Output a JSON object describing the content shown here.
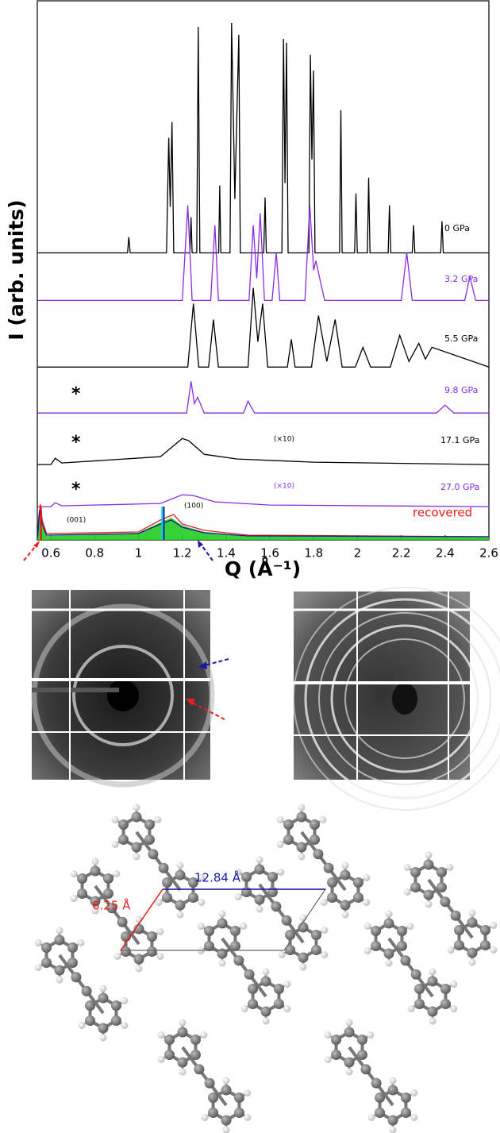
{
  "chart_data": {
    "type": "line",
    "x_label": "Q (Å⁻¹)",
    "y_label": "I (arb. units)",
    "xlim": [
      0.538,
      2.6
    ],
    "ylim": [
      0,
      680
    ],
    "xticks": [
      0.6,
      0.8,
      1,
      1.2,
      1.4,
      1.6,
      1.8,
      2,
      2.2,
      2.4,
      2.6
    ],
    "series": [
      {
        "name": "0 GPa",
        "color": "#000000",
        "x": [
          0.54,
          0.95,
          0.956,
          0.962,
          1.128,
          1.138,
          1.145,
          1.153,
          1.161,
          1.235,
          1.24,
          1.245,
          1.266,
          1.273,
          1.28,
          1.366,
          1.371,
          1.376,
          1.418,
          1.425,
          1.44,
          1.458,
          1.465,
          1.572,
          1.578,
          1.584,
          1.655,
          1.662,
          1.669,
          1.676,
          1.683,
          1.778,
          1.785,
          1.792,
          1.799,
          1.806,
          1.918,
          1.924,
          1.93,
          1.987,
          1.993,
          1.999,
          2.045,
          2.051,
          2.057,
          2.14,
          2.146,
          2.152,
          2.25,
          2.256,
          2.262,
          2.38,
          2.386,
          2.392,
          2.6
        ],
        "values": [
          362,
          362,
          382,
          362,
          362,
          507,
          420,
          527,
          362,
          362,
          407,
          362,
          362,
          647,
          362,
          362,
          447,
          362,
          362,
          652,
          430,
          637,
          362,
          362,
          432,
          362,
          362,
          632,
          450,
          627,
          362,
          362,
          612,
          480,
          592,
          362,
          362,
          542,
          362,
          362,
          437,
          362,
          362,
          457,
          362,
          362,
          422,
          362,
          362,
          397,
          362,
          362,
          402,
          362,
          362
        ]
      },
      {
        "name": "3.2 GPa",
        "color": "#8a2be2",
        "x": [
          0.54,
          1.2,
          1.225,
          1.245,
          1.33,
          1.349,
          1.365,
          1.505,
          1.524,
          1.54,
          1.556,
          1.575,
          1.61,
          1.629,
          1.645,
          1.76,
          1.782,
          1.8,
          1.81,
          1.85,
          2.2,
          2.225,
          2.25,
          2.49,
          2.513,
          2.54,
          2.6
        ],
        "values": [
          302,
          302,
          422,
          302,
          302,
          397,
          302,
          302,
          397,
          330,
          412,
          302,
          302,
          362,
          302,
          302,
          422,
          340,
          352,
          302,
          302,
          362,
          302,
          302,
          332,
          302,
          302
        ]
      },
      {
        "name": "5.5 GPa",
        "color": "#000000",
        "x": [
          0.54,
          1.225,
          1.251,
          1.275,
          1.32,
          1.342,
          1.365,
          1.5,
          1.524,
          1.545,
          1.567,
          1.59,
          1.68,
          1.698,
          1.715,
          1.79,
          1.822,
          1.86,
          1.898,
          1.93,
          1.99,
          2.025,
          2.06,
          2.15,
          2.193,
          2.235,
          2.28,
          2.31,
          2.34,
          2.6
        ],
        "values": [
          218,
          218,
          298,
          218,
          218,
          278,
          218,
          218,
          318,
          250,
          298,
          218,
          218,
          253,
          218,
          218,
          283,
          225,
          278,
          218,
          218,
          243,
          218,
          218,
          258,
          225,
          248,
          228,
          243,
          218
        ]
      },
      {
        "name": "9.8 GPa",
        "color": "#8a2be2",
        "x": [
          0.54,
          1.22,
          1.24,
          1.255,
          1.27,
          1.3,
          1.48,
          1.5,
          1.53,
          2.36,
          2.4,
          2.44,
          2.6
        ],
        "values": [
          160,
          160,
          200,
          172,
          180,
          160,
          160,
          175,
          160,
          160,
          170,
          160,
          160
        ]
      },
      {
        "name": "17.1 GPa",
        "color": "#000000",
        "x": [
          0.54,
          0.6,
          0.62,
          0.65,
          1.1,
          1.2,
          1.23,
          1.3,
          1.45,
          1.8,
          2.6
        ],
        "values": [
          95,
          95,
          103,
          97,
          105,
          128,
          125,
          108,
          102,
          98,
          95
        ]
      },
      {
        "name": "27.0 GPa",
        "color": "#8a2be2",
        "x": [
          0.54,
          0.6,
          0.62,
          0.65,
          1.1,
          1.2,
          1.25,
          1.35,
          1.6,
          2.6
        ],
        "values": [
          42,
          42,
          47,
          43,
          46,
          57,
          56,
          48,
          44,
          42
        ]
      },
      {
        "color": "#22cc22",
        "fill": true,
        "x": [
          0.54,
          0.545,
          0.55,
          0.56,
          0.58,
          1.0,
          1.1,
          1.15,
          1.2,
          1.3,
          1.5,
          2.6
        ],
        "values": [
          4,
          22,
          34,
          18,
          5,
          9,
          22,
          28,
          18,
          10,
          5,
          4
        ]
      },
      {
        "name": "recovered",
        "color": "#e8201a",
        "x": [
          0.54,
          0.545,
          0.552,
          0.56,
          0.58,
          1.0,
          1.1,
          1.16,
          1.2,
          1.3,
          1.5,
          2.6
        ],
        "values": [
          6,
          30,
          45,
          25,
          8,
          10,
          25,
          32,
          20,
          12,
          6,
          4
        ]
      },
      {
        "color": "#1a1aa0",
        "x": [
          0.54,
          0.545,
          0.55,
          0.56,
          0.58,
          1.0,
          1.1,
          1.15,
          1.2,
          1.3,
          1.5,
          2.6
        ],
        "values": [
          4,
          25,
          38,
          20,
          6,
          8,
          20,
          25,
          16,
          9,
          5,
          4
        ]
      }
    ],
    "vlines": [
      {
        "x": 0.555,
        "color": "#ff0000"
      },
      {
        "x": 1.108,
        "color": "#00d8e8"
      },
      {
        "x": 1.116,
        "color": "#1a1aa0"
      }
    ],
    "annotations": [
      "*",
      "*",
      "*",
      "(×10)",
      "(×10)",
      "(001)",
      "(100)"
    ]
  },
  "structure": {
    "labels": [
      "12.84 Å",
      "6.25 Å"
    ]
  }
}
